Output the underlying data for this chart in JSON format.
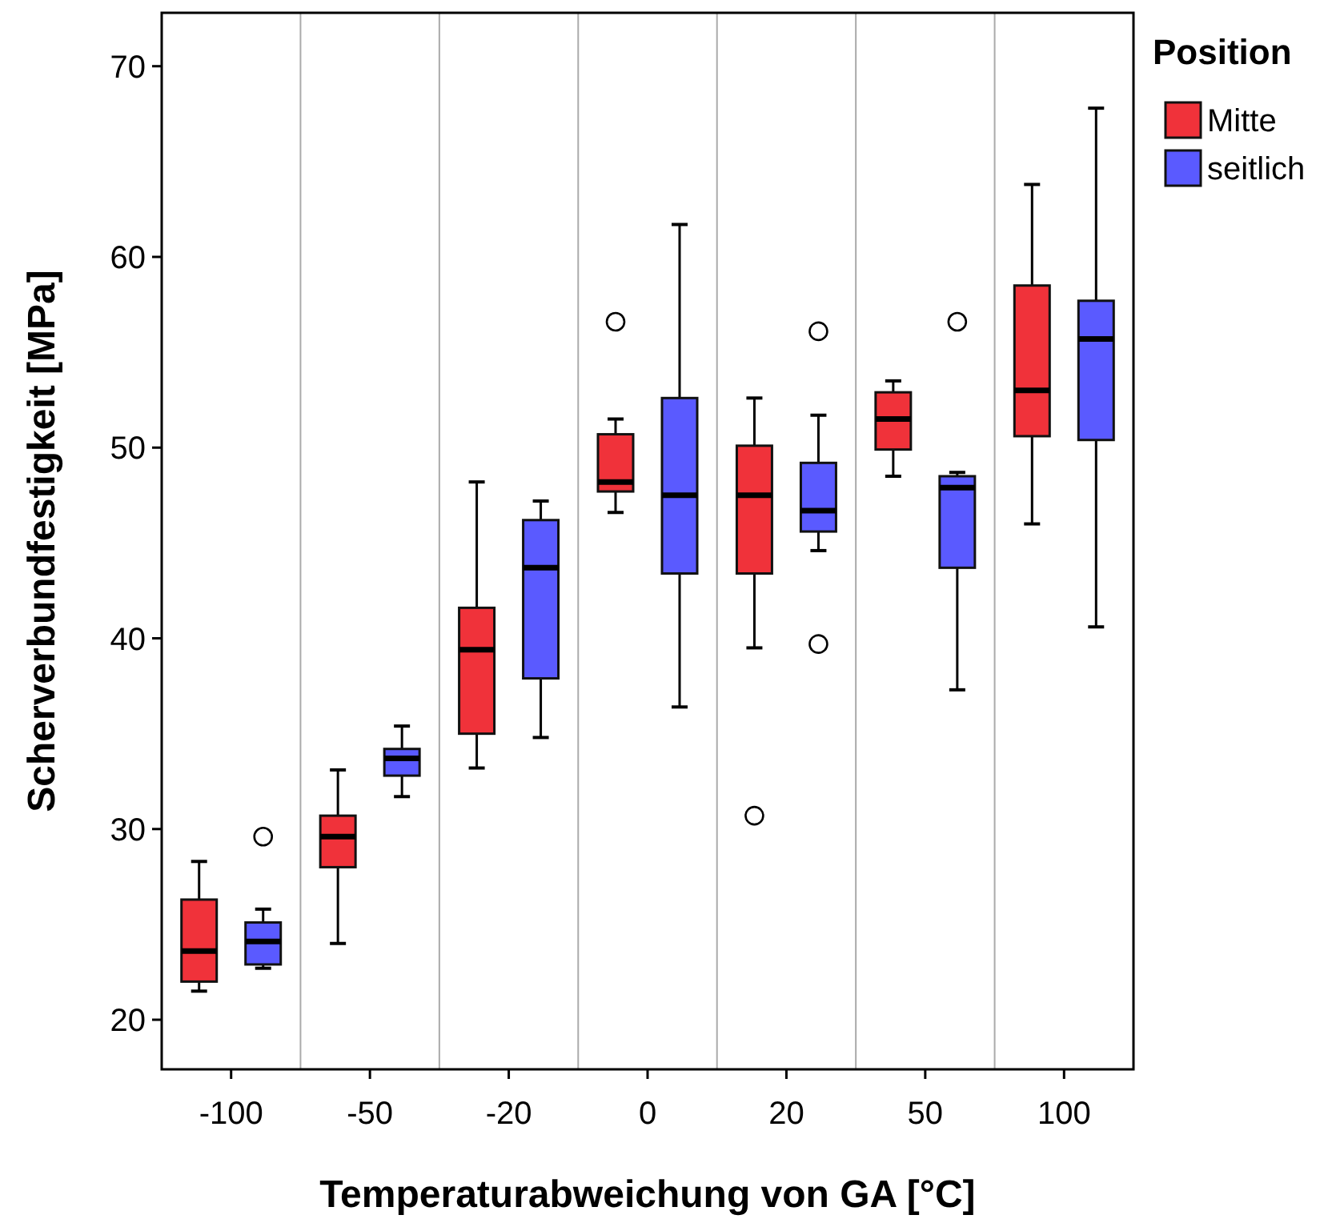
{
  "chart_data": {
    "type": "box",
    "xlabel": "Temperaturabweichung von GA [°C]",
    "ylabel": "Scherverbundfestigkeit [MPa]",
    "legend_title": "Position",
    "legend": "top right",
    "grid": "x",
    "categories": [
      "-100",
      "-50",
      "-20",
      "0",
      "20",
      "50",
      "100"
    ],
    "ylim": [
      17.4,
      72.8
    ],
    "yticks": [
      20,
      30,
      40,
      50,
      60,
      70
    ],
    "series": [
      {
        "name": "Mitte",
        "color": "#f0323a",
        "boxes": [
          {
            "low": 21.5,
            "q1": 22.0,
            "median": 23.6,
            "q3": 26.3,
            "high": 28.3
          },
          {
            "low": 24.0,
            "q1": 28.0,
            "median": 29.6,
            "q3": 30.7,
            "high": 33.1
          },
          {
            "low": 33.2,
            "q1": 35.0,
            "median": 39.4,
            "q3": 41.6,
            "high": 48.2
          },
          {
            "low": 46.6,
            "q1": 47.7,
            "median": 48.2,
            "q3": 50.7,
            "high": 51.5,
            "outliers": [
              56.6
            ]
          },
          {
            "low": 39.5,
            "q1": 43.4,
            "median": 47.5,
            "q3": 50.1,
            "high": 52.6,
            "outliers": [
              30.7
            ]
          },
          {
            "low": 48.5,
            "q1": 49.9,
            "median": 51.5,
            "q3": 52.9,
            "high": 53.5
          },
          {
            "low": 46.0,
            "q1": 50.6,
            "median": 53.0,
            "q3": 58.5,
            "high": 63.8
          }
        ]
      },
      {
        "name": "seitlich",
        "color": "#5a5aff",
        "boxes": [
          {
            "low": 22.7,
            "q1": 22.9,
            "median": 24.1,
            "q3": 25.1,
            "high": 25.8,
            "outliers": [
              29.6
            ]
          },
          {
            "low": 31.7,
            "q1": 32.8,
            "median": 33.7,
            "q3": 34.2,
            "high": 35.4
          },
          {
            "low": 34.8,
            "q1": 37.9,
            "median": 43.7,
            "q3": 46.2,
            "high": 47.2
          },
          {
            "low": 36.4,
            "q1": 43.4,
            "median": 47.5,
            "q3": 52.6,
            "high": 61.7
          },
          {
            "low": 44.6,
            "q1": 45.6,
            "median": 46.7,
            "q3": 49.2,
            "high": 51.7,
            "outliers": [
              56.1,
              39.7
            ]
          },
          {
            "low": 37.3,
            "q1": 43.7,
            "median": 47.9,
            "q3": 48.5,
            "high": 48.7,
            "outliers": [
              56.6
            ]
          },
          {
            "low": 40.6,
            "q1": 50.4,
            "median": 55.7,
            "q3": 57.7,
            "high": 67.8
          }
        ]
      }
    ]
  }
}
